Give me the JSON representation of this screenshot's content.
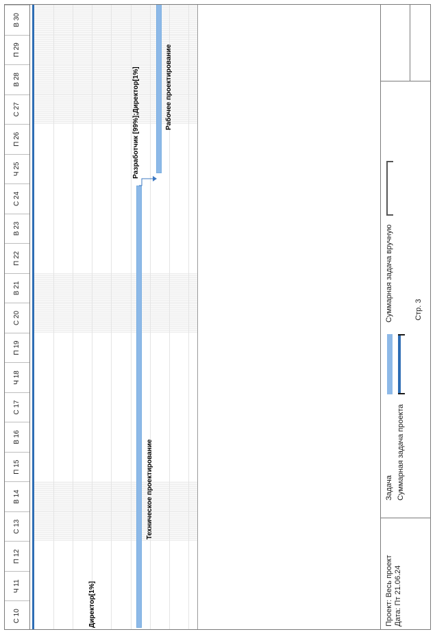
{
  "timescale": {
    "days": [
      "С 10",
      "Ч 11",
      "П 12",
      "С 13",
      "В 14",
      "П 15",
      "В 16",
      "С 17",
      "Ч 18",
      "П 19",
      "С 20",
      "В 21",
      "П 22",
      "В 23",
      "С 24",
      "Ч 25",
      "П 26",
      "С 27",
      "В 28",
      "П 29",
      "В 30"
    ],
    "weekend_days": [
      "С 13",
      "В 14",
      "С 20",
      "В 21",
      "С 27",
      "В 28",
      "П 29",
      "В 30"
    ]
  },
  "tasks": {
    "director_label": "Директор[1%]",
    "tech_design_label": "Техническое проектирование",
    "tech_resources_label": "Разработчик [99%];Директор[1%]",
    "work_design_label": "Рабочее проектирование"
  },
  "footer": {
    "project_line": "Проект: Весь проект",
    "date_line": "Дата: Пт 21.06.24",
    "legend": {
      "task": "Задача",
      "project_summary": "Суммарная задача проекта",
      "manual_summary": "Суммарная задача вручную"
    },
    "page_label": "Стр. 3"
  },
  "colors": {
    "task_bar": "#8db9e8",
    "summary_bar": "#2e6db4",
    "grid_border": "#7a7a7a"
  }
}
